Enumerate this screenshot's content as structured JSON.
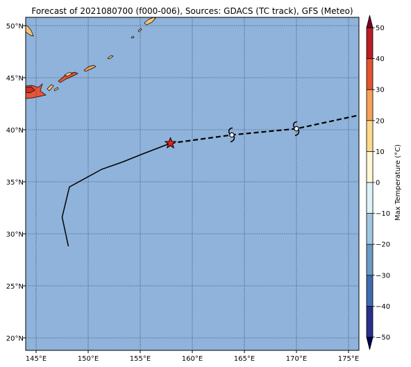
{
  "title": "Forecast of 2021080700 (f000-006), Sources: GDACS (TC track), GFS (Meteo)",
  "colors": {
    "ocean": "#8fb3da",
    "land_cool": "#f6c078",
    "land_warm": "#e8543a",
    "land_hot": "#c9302c",
    "track": "#000000",
    "current_marker": "#e32119"
  },
  "map": {
    "lon_range": [
      144,
      176
    ],
    "lat_range": [
      18.8,
      50.8
    ],
    "lon_ticks": [
      145,
      150,
      155,
      160,
      165,
      170,
      175
    ],
    "lon_tick_labels": [
      "145°E",
      "150°E",
      "155°E",
      "160°E",
      "165°E",
      "170°E",
      "175°E"
    ],
    "lat_ticks": [
      20,
      25,
      30,
      35,
      40,
      45,
      50
    ],
    "lat_tick_labels": [
      "20°N",
      "25°N",
      "30°N",
      "35°N",
      "40°N",
      "45°N",
      "50°N"
    ],
    "grid": true,
    "past_track": [
      [
        148.1,
        28.8
      ],
      [
        147.5,
        31.6
      ],
      [
        148.2,
        34.5
      ],
      [
        151.3,
        36.2
      ],
      [
        153.3,
        36.9
      ],
      [
        155.3,
        37.7
      ],
      [
        157.9,
        38.7
      ]
    ],
    "forecast_track": [
      [
        157.9,
        38.7
      ],
      [
        163.8,
        39.5
      ],
      [
        170.0,
        40.1
      ],
      [
        176.0,
        41.4
      ]
    ],
    "current_position": [
      157.9,
      38.7
    ],
    "forecast_points": [
      [
        163.8,
        39.5
      ],
      [
        170.0,
        40.1
      ]
    ],
    "storm_symbol_icon": "tropical-cyclone-icon",
    "current_marker_icon": "star-icon"
  },
  "colorbar": {
    "label": "Max Temperature (°C)",
    "levels": [
      -55,
      -50,
      -40,
      -30,
      -20,
      -10,
      0,
      10,
      20,
      30,
      40,
      50,
      55
    ],
    "tick_values": [
      50,
      40,
      30,
      20,
      10,
      0,
      -10,
      -20,
      -30,
      -40,
      -50
    ],
    "tick_labels": [
      "50",
      "40",
      "30",
      "20",
      "10",
      "0",
      "−10",
      "−20",
      "−30",
      "−40",
      "−50"
    ],
    "colors": [
      "#00005a",
      "#2a2f8c",
      "#3f6cae",
      "#6c9ac6",
      "#a0c6e0",
      "#dff2f6",
      "#fff8d5",
      "#fdd98b",
      "#f6a25a",
      "#e4532f",
      "#bb1d23",
      "#7a0021"
    ]
  }
}
